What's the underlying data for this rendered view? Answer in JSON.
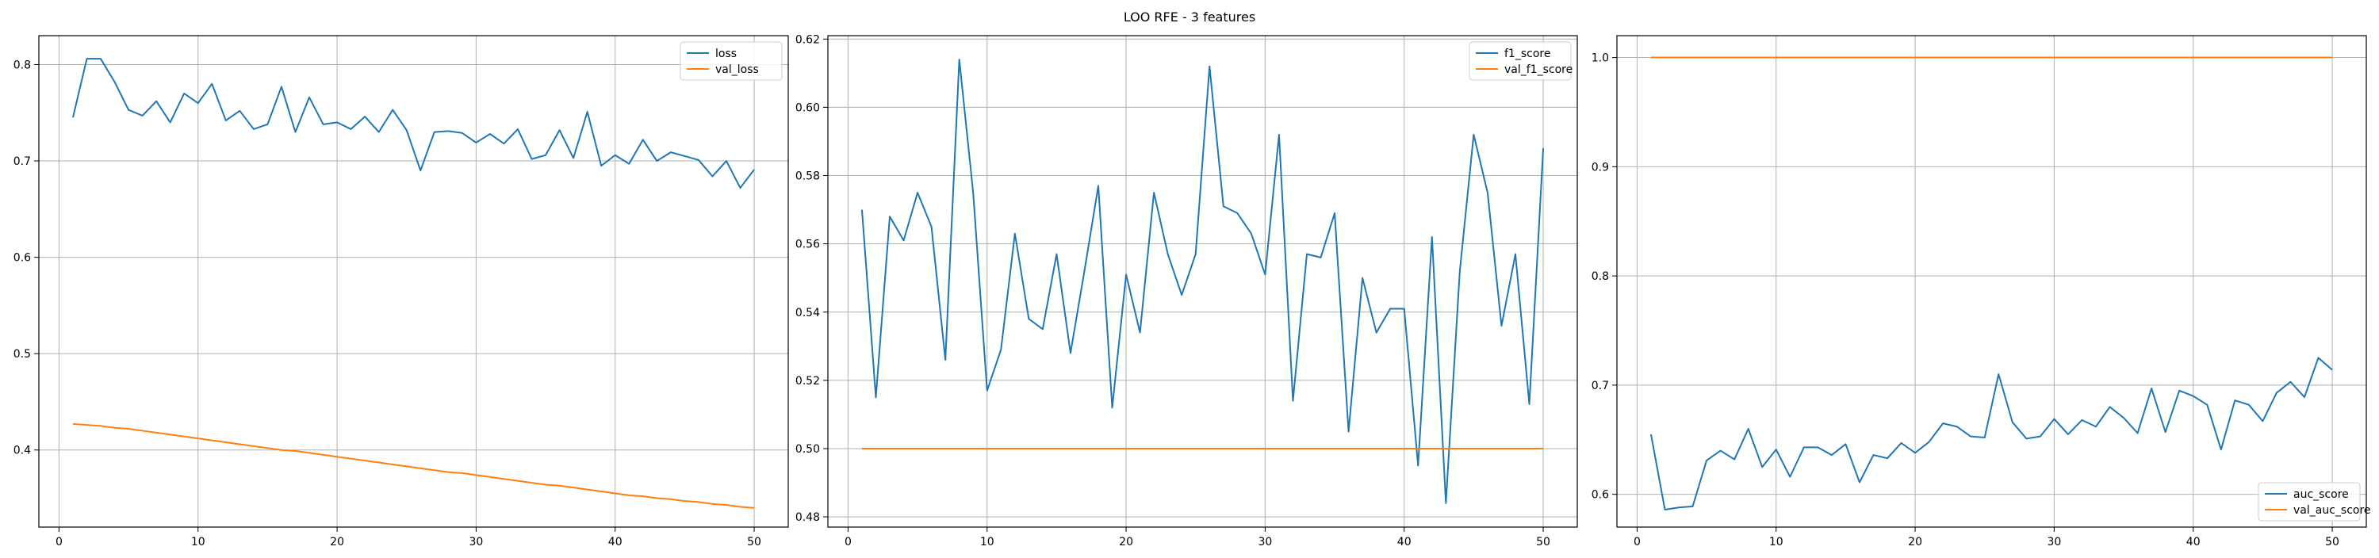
{
  "figure_title": "LOO RFE - 3 features",
  "colors": {
    "series_1": "#1f77b4",
    "series_2": "#ff7f0e",
    "grid": "#b0b0b0",
    "axes": "#000000"
  },
  "chart_data": [
    {
      "type": "line",
      "title": "",
      "xlabel": "",
      "ylabel": "",
      "grid": true,
      "legend_position": "top-right",
      "xlim": [
        -1.45,
        52.45
      ],
      "ylim": [
        0.32,
        0.83
      ],
      "xticks": [
        0,
        10,
        20,
        30,
        40,
        50
      ],
      "yticks": [
        0.4,
        0.5,
        0.6,
        0.7,
        0.8
      ],
      "ytick_labels": [
        "0.4",
        "0.5",
        "0.6",
        "0.7",
        "0.8"
      ],
      "x": [
        1,
        2,
        3,
        4,
        5,
        6,
        7,
        8,
        9,
        10,
        11,
        12,
        13,
        14,
        15,
        16,
        17,
        18,
        19,
        20,
        21,
        22,
        23,
        24,
        25,
        26,
        27,
        28,
        29,
        30,
        31,
        32,
        33,
        34,
        35,
        36,
        37,
        38,
        39,
        40,
        41,
        42,
        43,
        44,
        45,
        46,
        47,
        48,
        49,
        50
      ],
      "series": [
        {
          "name": "loss",
          "color": "#1f77b4",
          "values": [
            0.745,
            0.806,
            0.806,
            0.782,
            0.753,
            0.747,
            0.762,
            0.74,
            0.77,
            0.76,
            0.78,
            0.742,
            0.752,
            0.733,
            0.738,
            0.777,
            0.73,
            0.766,
            0.738,
            0.74,
            0.733,
            0.746,
            0.73,
            0.753,
            0.732,
            0.69,
            0.73,
            0.731,
            0.729,
            0.719,
            0.728,
            0.718,
            0.733,
            0.702,
            0.706,
            0.732,
            0.703,
            0.751,
            0.695,
            0.706,
            0.697,
            0.722,
            0.7,
            0.709,
            0.705,
            0.701,
            0.684,
            0.7,
            0.672,
            0.691
          ]
        },
        {
          "name": "val_loss",
          "color": "#ff7f0e",
          "values": [
            0.427,
            0.426,
            0.425,
            0.423,
            0.422,
            0.42,
            0.418,
            0.416,
            0.414,
            0.412,
            0.41,
            0.408,
            0.406,
            0.404,
            0.402,
            0.4,
            0.399,
            0.397,
            0.395,
            0.393,
            0.391,
            0.389,
            0.387,
            0.385,
            0.383,
            0.381,
            0.379,
            0.377,
            0.376,
            0.374,
            0.372,
            0.37,
            0.368,
            0.366,
            0.364,
            0.363,
            0.361,
            0.359,
            0.357,
            0.355,
            0.353,
            0.352,
            0.35,
            0.349,
            0.347,
            0.346,
            0.344,
            0.343,
            0.341,
            0.34
          ]
        }
      ]
    },
    {
      "type": "line",
      "title": "",
      "xlabel": "",
      "ylabel": "",
      "grid": true,
      "legend_position": "top-right",
      "xlim": [
        -1.45,
        52.45
      ],
      "ylim": [
        0.477,
        0.621
      ],
      "xticks": [
        0,
        10,
        20,
        30,
        40,
        50
      ],
      "yticks": [
        0.48,
        0.5,
        0.52,
        0.54,
        0.56,
        0.58,
        0.6,
        0.62
      ],
      "ytick_labels": [
        "0.48",
        "0.50",
        "0.52",
        "0.54",
        "0.56",
        "0.58",
        "0.60",
        "0.62"
      ],
      "x": [
        1,
        2,
        3,
        4,
        5,
        6,
        7,
        8,
        9,
        10,
        11,
        12,
        13,
        14,
        15,
        16,
        17,
        18,
        19,
        20,
        21,
        22,
        23,
        24,
        25,
        26,
        27,
        28,
        29,
        30,
        31,
        32,
        33,
        34,
        35,
        36,
        37,
        38,
        39,
        40,
        41,
        42,
        43,
        44,
        45,
        46,
        47,
        48,
        49,
        50
      ],
      "series": [
        {
          "name": "f1_score",
          "color": "#1f77b4",
          "values": [
            0.57,
            0.515,
            0.568,
            0.561,
            0.575,
            0.565,
            0.526,
            0.614,
            0.575,
            0.517,
            0.529,
            0.563,
            0.538,
            0.535,
            0.557,
            0.528,
            0.552,
            0.577,
            0.512,
            0.551,
            0.534,
            0.575,
            0.557,
            0.545,
            0.557,
            0.612,
            0.571,
            0.569,
            0.563,
            0.551,
            0.592,
            0.514,
            0.557,
            0.556,
            0.569,
            0.505,
            0.55,
            0.534,
            0.541,
            0.541,
            0.495,
            0.562,
            0.484,
            0.552,
            0.592,
            0.575,
            0.536,
            0.557,
            0.513,
            0.588
          ]
        },
        {
          "name": "val_f1_score",
          "color": "#ff7f0e",
          "values": [
            0.5,
            0.5,
            0.5,
            0.5,
            0.5,
            0.5,
            0.5,
            0.5,
            0.5,
            0.5,
            0.5,
            0.5,
            0.5,
            0.5,
            0.5,
            0.5,
            0.5,
            0.5,
            0.5,
            0.5,
            0.5,
            0.5,
            0.5,
            0.5,
            0.5,
            0.5,
            0.5,
            0.5,
            0.5,
            0.5,
            0.5,
            0.5,
            0.5,
            0.5,
            0.5,
            0.5,
            0.5,
            0.5,
            0.5,
            0.5,
            0.5,
            0.5,
            0.5,
            0.5,
            0.5,
            0.5,
            0.5,
            0.5,
            0.5,
            0.5
          ]
        }
      ]
    },
    {
      "type": "line",
      "title": "",
      "xlabel": "",
      "ylabel": "",
      "grid": true,
      "legend_position": "bottom-right",
      "xlim": [
        -1.45,
        52.45
      ],
      "ylim": [
        0.57,
        1.02
      ],
      "xticks": [
        0,
        10,
        20,
        30,
        40,
        50
      ],
      "yticks": [
        0.6,
        0.7,
        0.8,
        0.9,
        1.0
      ],
      "ytick_labels": [
        "0.6",
        "0.7",
        "0.8",
        "0.9",
        "1.0"
      ],
      "x": [
        1,
        2,
        3,
        4,
        5,
        6,
        7,
        8,
        9,
        10,
        11,
        12,
        13,
        14,
        15,
        16,
        17,
        18,
        19,
        20,
        21,
        22,
        23,
        24,
        25,
        26,
        27,
        28,
        29,
        30,
        31,
        32,
        33,
        34,
        35,
        36,
        37,
        38,
        39,
        40,
        41,
        42,
        43,
        44,
        45,
        46,
        47,
        48,
        49,
        50
      ],
      "series": [
        {
          "name": "auc_score",
          "color": "#1f77b4",
          "values": [
            0.655,
            0.586,
            0.588,
            0.589,
            0.631,
            0.64,
            0.632,
            0.66,
            0.625,
            0.641,
            0.616,
            0.643,
            0.643,
            0.636,
            0.646,
            0.611,
            0.636,
            0.633,
            0.647,
            0.638,
            0.648,
            0.665,
            0.662,
            0.653,
            0.652,
            0.71,
            0.666,
            0.651,
            0.653,
            0.669,
            0.655,
            0.668,
            0.662,
            0.68,
            0.67,
            0.656,
            0.697,
            0.657,
            0.695,
            0.69,
            0.682,
            0.641,
            0.686,
            0.682,
            0.667,
            0.693,
            0.703,
            0.689,
            0.725,
            0.714
          ]
        },
        {
          "name": "val_auc_score",
          "color": "#ff7f0e",
          "values": [
            1.0,
            1.0,
            1.0,
            1.0,
            1.0,
            1.0,
            1.0,
            1.0,
            1.0,
            1.0,
            1.0,
            1.0,
            1.0,
            1.0,
            1.0,
            1.0,
            1.0,
            1.0,
            1.0,
            1.0,
            1.0,
            1.0,
            1.0,
            1.0,
            1.0,
            1.0,
            1.0,
            1.0,
            1.0,
            1.0,
            1.0,
            1.0,
            1.0,
            1.0,
            1.0,
            1.0,
            1.0,
            1.0,
            1.0,
            1.0,
            1.0,
            1.0,
            1.0,
            1.0,
            1.0,
            1.0,
            1.0,
            1.0,
            1.0,
            1.0
          ]
        }
      ]
    }
  ]
}
